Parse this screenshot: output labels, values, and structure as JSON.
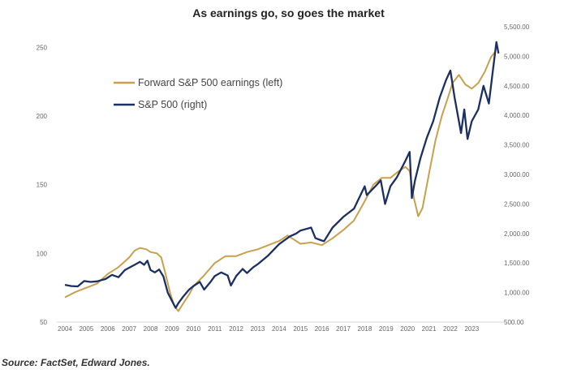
{
  "title": "As earnings go, so goes the market",
  "source": "Source: FactSet, Edward Jones.",
  "chart_data": {
    "type": "line",
    "title": "As earnings go, so goes the market",
    "x_ticks": [
      "2004",
      "2005",
      "2006",
      "2007",
      "2008",
      "2009",
      "2010",
      "2011",
      "2012",
      "2013",
      "2014",
      "2015",
      "2016",
      "2017",
      "2018",
      "2019",
      "2020",
      "2021",
      "2022",
      "2023"
    ],
    "xlim": [
      2004.0,
      2024.2
    ],
    "y_left": {
      "lim": [
        50,
        265
      ],
      "ticks": [
        50,
        100,
        150,
        200,
        250
      ],
      "tick_labels": [
        "50",
        "100",
        "150",
        "200",
        "250"
      ]
    },
    "y_right": {
      "lim": [
        500,
        5500
      ],
      "ticks": [
        500,
        1000,
        1500,
        2000,
        2500,
        3000,
        3500,
        4000,
        4500,
        5000,
        5500
      ],
      "tick_labels": [
        "500.00",
        "1,000.00",
        "1,500.00",
        "2,000.00",
        "2,500.00",
        "3,000.00",
        "3,500.00",
        "4,000.00",
        "4,500.00",
        "5,000.00",
        "5,500.00"
      ]
    },
    "legend_position": "top-left",
    "grid": false,
    "series": [
      {
        "name": "Forward S&P 500 earnings (left)",
        "axis": "left",
        "color": "#C9A04D",
        "points": [
          [
            2004.0,
            68
          ],
          [
            2004.5,
            72
          ],
          [
            2005.0,
            75
          ],
          [
            2005.5,
            78
          ],
          [
            2006.0,
            85
          ],
          [
            2006.5,
            90
          ],
          [
            2007.0,
            97
          ],
          [
            2007.25,
            102
          ],
          [
            2007.5,
            104
          ],
          [
            2007.8,
            103
          ],
          [
            2008.0,
            101
          ],
          [
            2008.3,
            100
          ],
          [
            2008.5,
            97
          ],
          [
            2008.7,
            85
          ],
          [
            2008.9,
            72
          ],
          [
            2009.1,
            62
          ],
          [
            2009.3,
            58
          ],
          [
            2009.5,
            63
          ],
          [
            2009.8,
            70
          ],
          [
            2010.0,
            76
          ],
          [
            2010.5,
            84
          ],
          [
            2011.0,
            93
          ],
          [
            2011.5,
            98
          ],
          [
            2012.0,
            98
          ],
          [
            2012.5,
            101
          ],
          [
            2013.0,
            103
          ],
          [
            2013.5,
            106
          ],
          [
            2014.0,
            109
          ],
          [
            2014.4,
            113
          ],
          [
            2014.6,
            111
          ],
          [
            2015.0,
            107
          ],
          [
            2015.5,
            108
          ],
          [
            2016.0,
            106
          ],
          [
            2016.5,
            111
          ],
          [
            2017.0,
            117
          ],
          [
            2017.5,
            124
          ],
          [
            2018.0,
            138
          ],
          [
            2018.4,
            150
          ],
          [
            2018.8,
            155
          ],
          [
            2019.2,
            155
          ],
          [
            2019.6,
            160
          ],
          [
            2019.9,
            163
          ],
          [
            2020.1,
            160
          ],
          [
            2020.3,
            140
          ],
          [
            2020.5,
            127
          ],
          [
            2020.7,
            133
          ],
          [
            2021.0,
            158
          ],
          [
            2021.3,
            182
          ],
          [
            2021.6,
            200
          ],
          [
            2021.9,
            214
          ],
          [
            2022.1,
            224
          ],
          [
            2022.4,
            230
          ],
          [
            2022.7,
            223
          ],
          [
            2023.0,
            220
          ],
          [
            2023.3,
            224
          ],
          [
            2023.6,
            232
          ],
          [
            2023.9,
            243
          ],
          [
            2024.1,
            247
          ]
        ]
      },
      {
        "name": "S&P 500 (right)",
        "axis": "right",
        "color": "#1B2F63",
        "points": [
          [
            2004.0,
            1130
          ],
          [
            2004.3,
            1110
          ],
          [
            2004.6,
            1105
          ],
          [
            2004.9,
            1195
          ],
          [
            2005.2,
            1180
          ],
          [
            2005.5,
            1190
          ],
          [
            2005.9,
            1230
          ],
          [
            2006.2,
            1300
          ],
          [
            2006.5,
            1260
          ],
          [
            2006.8,
            1380
          ],
          [
            2007.0,
            1420
          ],
          [
            2007.3,
            1480
          ],
          [
            2007.5,
            1520
          ],
          [
            2007.7,
            1470
          ],
          [
            2007.85,
            1540
          ],
          [
            2008.0,
            1380
          ],
          [
            2008.2,
            1340
          ],
          [
            2008.4,
            1390
          ],
          [
            2008.6,
            1270
          ],
          [
            2008.8,
            1000
          ],
          [
            2009.0,
            860
          ],
          [
            2009.17,
            740
          ],
          [
            2009.3,
            820
          ],
          [
            2009.5,
            920
          ],
          [
            2009.8,
            1050
          ],
          [
            2010.0,
            1110
          ],
          [
            2010.3,
            1180
          ],
          [
            2010.5,
            1050
          ],
          [
            2010.8,
            1180
          ],
          [
            2011.0,
            1280
          ],
          [
            2011.3,
            1340
          ],
          [
            2011.6,
            1290
          ],
          [
            2011.75,
            1120
          ],
          [
            2012.0,
            1280
          ],
          [
            2012.3,
            1400
          ],
          [
            2012.5,
            1330
          ],
          [
            2012.8,
            1430
          ],
          [
            2013.0,
            1480
          ],
          [
            2013.5,
            1630
          ],
          [
            2014.0,
            1820
          ],
          [
            2014.5,
            1950
          ],
          [
            2014.8,
            2000
          ],
          [
            2015.0,
            2050
          ],
          [
            2015.5,
            2100
          ],
          [
            2015.7,
            1920
          ],
          [
            2016.0,
            1880
          ],
          [
            2016.1,
            1870
          ],
          [
            2016.5,
            2100
          ],
          [
            2017.0,
            2280
          ],
          [
            2017.5,
            2420
          ],
          [
            2018.0,
            2800
          ],
          [
            2018.1,
            2650
          ],
          [
            2018.5,
            2800
          ],
          [
            2018.75,
            2900
          ],
          [
            2018.95,
            2500
          ],
          [
            2019.2,
            2800
          ],
          [
            2019.5,
            2950
          ],
          [
            2019.9,
            3230
          ],
          [
            2020.1,
            3380
          ],
          [
            2020.2,
            2600
          ],
          [
            2020.35,
            2900
          ],
          [
            2020.6,
            3270
          ],
          [
            2020.9,
            3620
          ],
          [
            2021.2,
            3900
          ],
          [
            2021.5,
            4300
          ],
          [
            2021.8,
            4600
          ],
          [
            2022.0,
            4760
          ],
          [
            2022.2,
            4300
          ],
          [
            2022.4,
            3900
          ],
          [
            2022.5,
            3700
          ],
          [
            2022.65,
            4100
          ],
          [
            2022.8,
            3600
          ],
          [
            2023.0,
            3900
          ],
          [
            2023.3,
            4100
          ],
          [
            2023.55,
            4500
          ],
          [
            2023.8,
            4200
          ],
          [
            2024.0,
            4800
          ],
          [
            2024.15,
            5240
          ],
          [
            2024.25,
            5050
          ]
        ]
      }
    ]
  }
}
